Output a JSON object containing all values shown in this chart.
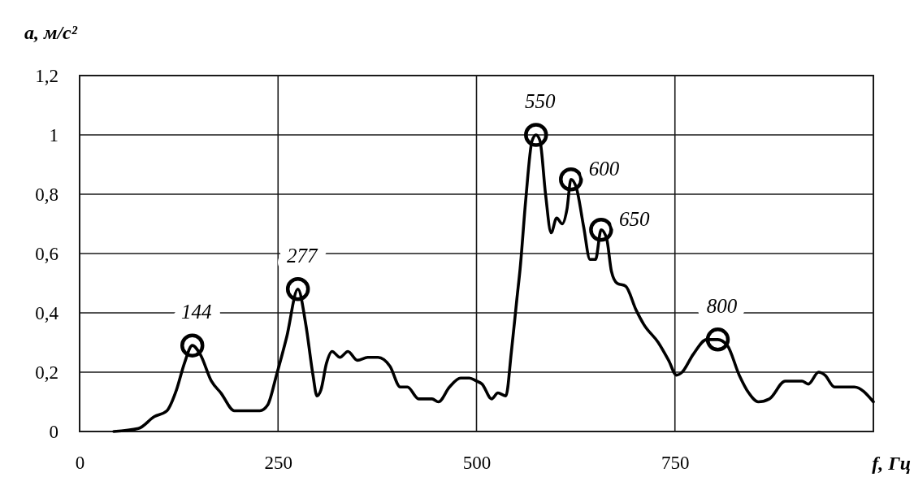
{
  "chart_data": {
    "type": "line",
    "ylabel": "a, м/с²",
    "xlabel": "f, Гц",
    "xlim": [
      0,
      1000
    ],
    "xticks": [
      0,
      250,
      500,
      750,
      {
        "value": 1000,
        "label": null
      }
    ],
    "ylim": [
      0,
      1.2
    ],
    "yticks": [
      0,
      {
        "value": 0.2,
        "label": "0,2"
      },
      {
        "value": 0.4,
        "label": "0,4"
      },
      {
        "value": 0.6,
        "label": "0,6"
      },
      {
        "value": 0.8,
        "label": "0,8"
      },
      1,
      {
        "value": 1.2,
        "label": "1,2"
      }
    ],
    "grid": true,
    "series": [
      {
        "color": "#000000",
        "x": [
          43,
          74,
          94,
          110,
          122,
          132,
          142,
          152,
          166,
          178,
          195,
          227,
          237,
          248,
          261,
          275,
          285,
          294,
          299,
          304,
          311,
          318,
          328,
          338,
          350,
          363,
          376,
          391,
          404,
          413,
          427,
          444,
          452,
          466,
          480,
          491,
          500,
          507,
          519,
          527,
          537,
          544,
          551,
          555,
          562,
          570,
          575,
          580,
          587,
          594,
          601,
          608,
          614,
          619,
          626,
          635,
          643,
          650,
          657,
          664,
          670,
          677,
          688,
          701,
          711,
          729,
          742,
          752,
          759,
          773,
          790,
          804,
          816,
          831,
          843,
          855,
          869,
          889,
          910,
          918,
          931,
          939,
          951,
          976,
          1000
        ],
        "values": [
          0,
          0.01,
          0.05,
          0.07,
          0.14,
          0.23,
          0.29,
          0.26,
          0.17,
          0.13,
          0.07,
          0.07,
          0.09,
          0.19,
          0.32,
          0.48,
          0.36,
          0.19,
          0.12,
          0.14,
          0.23,
          0.27,
          0.25,
          0.27,
          0.24,
          0.25,
          0.25,
          0.22,
          0.15,
          0.15,
          0.11,
          0.11,
          0.1,
          0.15,
          0.18,
          0.18,
          0.17,
          0.16,
          0.11,
          0.13,
          0.12,
          0.27,
          0.45,
          0.55,
          0.78,
          0.98,
          1.0,
          0.98,
          0.8,
          0.67,
          0.72,
          0.7,
          0.75,
          0.85,
          0.82,
          0.69,
          0.58,
          0.58,
          0.68,
          0.65,
          0.54,
          0.5,
          0.49,
          0.41,
          0.36,
          0.3,
          0.24,
          0.19,
          0.2,
          0.26,
          0.31,
          0.31,
          0.29,
          0.19,
          0.13,
          0.1,
          0.11,
          0.17,
          0.17,
          0.16,
          0.2,
          0.19,
          0.15,
          0.15,
          0.1
        ]
      },
      {
        "type": "scatter",
        "color": "#000000",
        "marker": "circle",
        "x": [
          142,
          275,
          575,
          619,
          657,
          804
        ],
        "values": [
          0.29,
          0.48,
          1.0,
          0.85,
          0.68,
          0.31
        ]
      }
    ],
    "annotations": [
      {
        "text": "144",
        "x": 142,
        "y": 0.29
      },
      {
        "text": "277",
        "x": 275,
        "y": 0.48
      },
      {
        "text": "550",
        "x": 575,
        "y": 1.0
      },
      {
        "text": "600",
        "x": 619,
        "y": 0.85
      },
      {
        "text": "650",
        "x": 657,
        "y": 0.68
      },
      {
        "text": "800",
        "x": 804,
        "y": 0.31
      }
    ]
  }
}
